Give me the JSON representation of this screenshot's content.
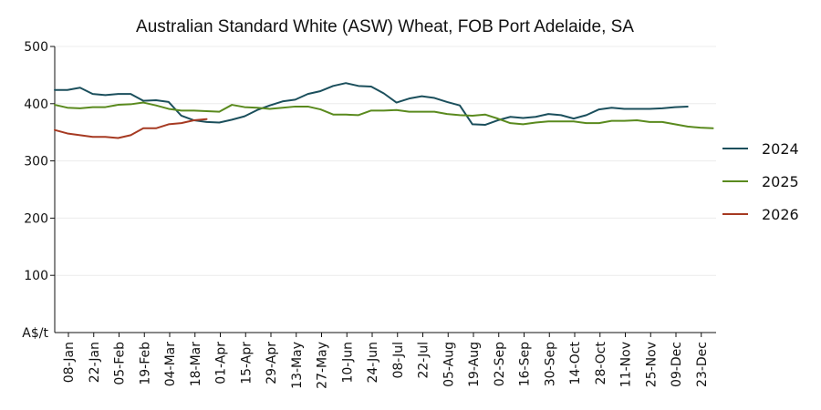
{
  "chart_data": {
    "type": "line",
    "title": "Australian Standard White (ASW) Wheat, FOB Port Adelaide, SA",
    "ylabel": "A$/t",
    "xlabel": "",
    "ylim": [
      0,
      500
    ],
    "yticks": [
      100,
      200,
      300,
      400,
      500
    ],
    "grid": "horizontal",
    "legend_position": "right",
    "x_tick_labels": [
      "08-Jan",
      "22-Jan",
      "05-Feb",
      "19-Feb",
      "04-Mar",
      "18-Mar",
      "01-Apr",
      "15-Apr",
      "29-Apr",
      "13-May",
      "27-May",
      "10-Jun",
      "24-Jun",
      "08-Jul",
      "22-Jul",
      "05-Aug",
      "19-Aug",
      "02-Sep",
      "16-Sep",
      "30-Sep",
      "14-Oct",
      "28-Oct",
      "11-Nov",
      "25-Nov",
      "09-Dec",
      "23-Dec"
    ],
    "series": [
      {
        "name": "2024",
        "color": "#1b4f5c",
        "values": [
          424,
          424,
          428,
          417,
          415,
          417,
          417,
          405,
          406,
          403,
          379,
          371,
          368,
          367,
          372,
          378,
          389,
          397,
          404,
          407,
          417,
          422,
          431,
          436,
          431,
          430,
          418,
          402,
          409,
          413,
          410,
          403,
          397,
          364,
          363,
          371,
          377,
          375,
          377,
          382,
          380,
          374,
          380,
          390,
          393,
          391,
          391,
          391,
          392,
          394,
          395
        ]
      },
      {
        "name": "2025",
        "color": "#5a8a1e",
        "values": [
          398,
          393,
          392,
          394,
          394,
          398,
          399,
          402,
          397,
          391,
          388,
          388,
          387,
          386,
          398,
          394,
          393,
          391,
          393,
          395,
          395,
          390,
          381,
          381,
          380,
          388,
          388,
          389,
          386,
          386,
          386,
          382,
          380,
          379,
          381,
          374,
          366,
          364,
          367,
          369,
          369,
          369,
          366,
          366,
          370,
          370,
          371,
          368,
          368,
          364,
          360,
          358,
          357
        ]
      },
      {
        "name": "2026",
        "color": "#a63a22",
        "values": [
          354,
          348,
          345,
          342,
          342,
          340,
          345,
          357,
          357,
          364,
          366,
          371,
          373
        ]
      }
    ]
  }
}
